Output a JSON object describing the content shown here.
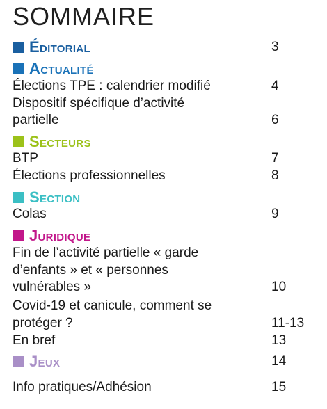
{
  "title": "SOMMAIRE",
  "colors": {
    "editorial": "#1a5fa0",
    "actualite": "#1a72b8",
    "secteurs": "#9cc21a",
    "section": "#3bbfc4",
    "juridique": "#c2168a",
    "jeux": "#a98fc7"
  },
  "sections": {
    "editorial": {
      "name": "Éditorial",
      "page": "3"
    },
    "actualite": {
      "name": "Actualité"
    },
    "secteurs": {
      "name": "Secteurs"
    },
    "section": {
      "name": "Section"
    },
    "juridique": {
      "name": "Juridique"
    },
    "jeux": {
      "name": "Jeux",
      "page": "14"
    }
  },
  "entries": {
    "elections_tpe": {
      "lines": [
        "Élections TPE : calendrier modifié"
      ],
      "page": "4"
    },
    "dispositif": {
      "lines": [
        "Dispositif spécifique d’activité",
        "partielle"
      ],
      "page": "6"
    },
    "btp": {
      "lines": [
        "BTP"
      ],
      "page": "7"
    },
    "elections_pro": {
      "lines": [
        "Élections professionnelles"
      ],
      "page": "8"
    },
    "colas": {
      "lines": [
        "Colas"
      ],
      "page": "9"
    },
    "fin_activite": {
      "lines": [
        "Fin de l’activité partielle « garde",
        "d’enfants » et « personnes",
        "vulnérables »"
      ],
      "page": "10"
    },
    "covid": {
      "lines": [
        "Covid-19 et canicule, comment se",
        "protéger ?"
      ],
      "page": "11-13"
    },
    "en_bref": {
      "lines": [
        "En bref"
      ],
      "page": "13"
    },
    "info_pratiques": {
      "lines": [
        "Info pratiques/Adhésion"
      ],
      "page": "15"
    }
  }
}
